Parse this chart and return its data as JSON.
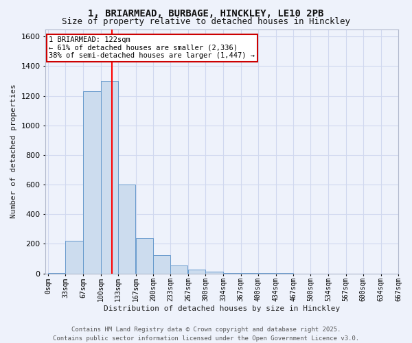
{
  "title": "1, BRIARMEAD, BURBAGE, HINCKLEY, LE10 2PB",
  "subtitle": "Size of property relative to detached houses in Hinckley",
  "xlabel": "Distribution of detached houses by size in Hinckley",
  "ylabel": "Number of detached properties",
  "bin_left_edges": [
    0,
    33,
    67,
    100,
    133,
    167,
    200,
    233,
    267,
    300,
    334,
    367,
    400,
    434,
    467,
    500,
    534,
    567,
    600,
    634
  ],
  "bin_width": 33,
  "bar_heights": [
    5,
    220,
    1230,
    1300,
    600,
    240,
    125,
    55,
    25,
    10,
    5,
    2,
    2,
    1,
    0,
    0,
    0,
    0,
    0,
    0
  ],
  "bar_facecolor": "#ccdcee",
  "bar_edgecolor": "#6699cc",
  "background_color": "#eef2fb",
  "grid_color": "#d0d8ef",
  "red_line_x": 122,
  "annotation_line1": "1 BRIARMEAD: 122sqm",
  "annotation_line2": "← 61% of detached houses are smaller (2,336)",
  "annotation_line3": "38% of semi-detached houses are larger (1,447) →",
  "annotation_box_facecolor": "#ffffff",
  "annotation_box_edgecolor": "#cc0000",
  "ylim": [
    0,
    1650
  ],
  "yticks": [
    0,
    200,
    400,
    600,
    800,
    1000,
    1200,
    1400,
    1600
  ],
  "xlim": [
    -5,
    667
  ],
  "xtick_labels": [
    "0sqm",
    "33sqm",
    "67sqm",
    "100sqm",
    "133sqm",
    "167sqm",
    "200sqm",
    "233sqm",
    "267sqm",
    "300sqm",
    "334sqm",
    "367sqm",
    "400sqm",
    "434sqm",
    "467sqm",
    "500sqm",
    "534sqm",
    "567sqm",
    "600sqm",
    "634sqm",
    "667sqm"
  ],
  "xtick_positions": [
    0,
    33,
    67,
    100,
    133,
    167,
    200,
    233,
    267,
    300,
    334,
    367,
    400,
    434,
    467,
    500,
    534,
    567,
    600,
    634,
    667
  ],
  "footer_text": "Contains HM Land Registry data © Crown copyright and database right 2025.\nContains public sector information licensed under the Open Government Licence v3.0.",
  "title_fontsize": 10,
  "subtitle_fontsize": 9,
  "axis_label_fontsize": 8,
  "tick_fontsize": 7,
  "annotation_fontsize": 7.5,
  "footer_fontsize": 6.5,
  "ylabel_fontsize": 8
}
